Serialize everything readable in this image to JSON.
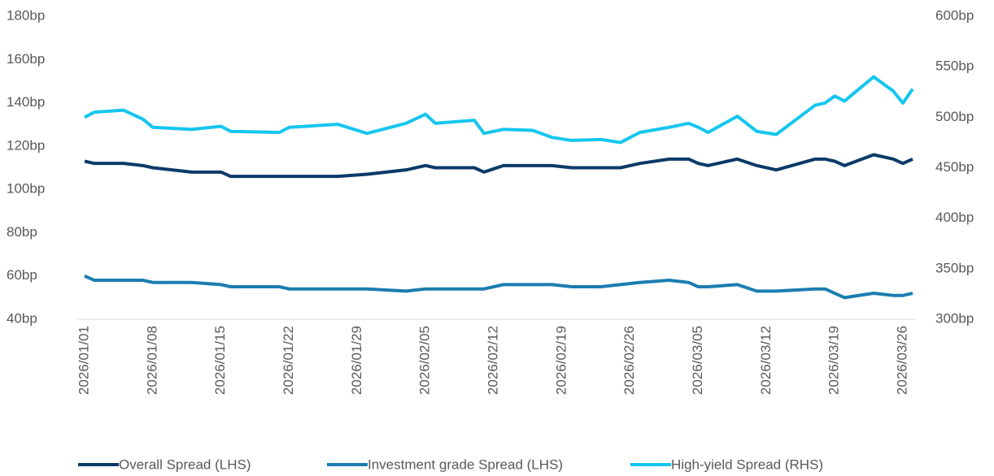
{
  "chart_data": {
    "type": "line",
    "x": [
      "2026/01/01",
      "2026/01/02",
      "2026/01/05",
      "2026/01/07",
      "2026/01/08",
      "2026/01/12",
      "2026/01/15",
      "2026/01/16",
      "2026/01/21",
      "2026/01/22",
      "2026/01/27",
      "2026/01/30",
      "2026/02/03",
      "2026/02/05",
      "2026/02/06",
      "2026/02/10",
      "2026/02/11",
      "2026/02/13",
      "2026/02/16",
      "2026/02/18",
      "2026/02/20",
      "2026/02/23",
      "2026/02/25",
      "2026/02/27",
      "2026/03/02",
      "2026/03/04",
      "2026/03/05",
      "2026/03/06",
      "2026/03/09",
      "2026/03/11",
      "2026/03/13",
      "2026/03/17",
      "2026/03/18",
      "2026/03/19",
      "2026/03/20",
      "2026/03/23",
      "2026/03/25",
      "2026/03/26",
      "2026/03/27"
    ],
    "xlim": [
      "2026/01/01",
      "2026/03/27"
    ],
    "xticks": [
      "2026/01/01",
      "2026/01/08",
      "2026/01/15",
      "2026/01/22",
      "2026/01/29",
      "2026/02/05",
      "2026/02/12",
      "2026/02/19",
      "2026/02/26",
      "2026/03/05",
      "2026/03/12",
      "2026/03/19",
      "2026/03/26"
    ],
    "ylim": [
      40,
      180
    ],
    "yticks": [
      {
        "value": 40,
        "label": "40bp"
      },
      {
        "value": 60,
        "label": "60bp"
      },
      {
        "value": 80,
        "label": "80bp"
      },
      {
        "value": 100,
        "label": "100bp"
      },
      {
        "value": 120,
        "label": "120bp"
      },
      {
        "value": 140,
        "label": "140bp"
      },
      {
        "value": 160,
        "label": "160bp"
      },
      {
        "value": 180,
        "label": "180bp"
      }
    ],
    "y2lim": [
      300,
      600
    ],
    "y2ticks": [
      {
        "value": 300,
        "label": "300bp"
      },
      {
        "value": 350,
        "label": "350bp"
      },
      {
        "value": 400,
        "label": "400bp"
      },
      {
        "value": 450,
        "label": "450bp"
      },
      {
        "value": 500,
        "label": "500bp"
      },
      {
        "value": 550,
        "label": "550bp"
      },
      {
        "value": 600,
        "label": "600bp"
      }
    ],
    "legend": "bottom",
    "series": [
      {
        "name": "Overall Spread (LHS)",
        "color": "#0b3a68",
        "values": [
          113,
          112,
          112,
          111,
          110,
          108,
          108,
          106,
          106,
          106,
          106,
          107,
          109,
          111,
          110,
          110,
          108,
          111,
          111,
          111,
          110,
          110,
          110,
          112,
          114,
          114,
          112,
          111,
          114,
          111,
          109,
          114,
          114,
          113,
          111,
          116,
          114,
          112,
          114
        ]
      },
      {
        "name": "Investment grade Spread (LHS)",
        "color": "#1b7db0",
        "values": [
          60,
          58,
          58,
          58,
          57,
          57,
          56,
          55,
          55,
          54,
          54,
          54,
          53,
          54,
          54,
          54,
          54,
          56,
          56,
          56,
          55,
          55,
          56,
          57,
          58,
          57,
          55,
          55,
          56,
          53,
          53,
          54,
          54,
          52,
          50,
          52,
          51,
          51,
          52
        ]
      },
      {
        "name": "High-yield Spread (RHS)",
        "color": "#15c6ef",
        "axis": "y2",
        "values": [
          500,
          505,
          507,
          498,
          490,
          488,
          491,
          486,
          485,
          490,
          493,
          484,
          494,
          503,
          494,
          497,
          484,
          488,
          487,
          480,
          477,
          478,
          475,
          485,
          490,
          494,
          490,
          485,
          501,
          486,
          483,
          512,
          514,
          521,
          516,
          540,
          526,
          514,
          528
        ]
      }
    ]
  }
}
